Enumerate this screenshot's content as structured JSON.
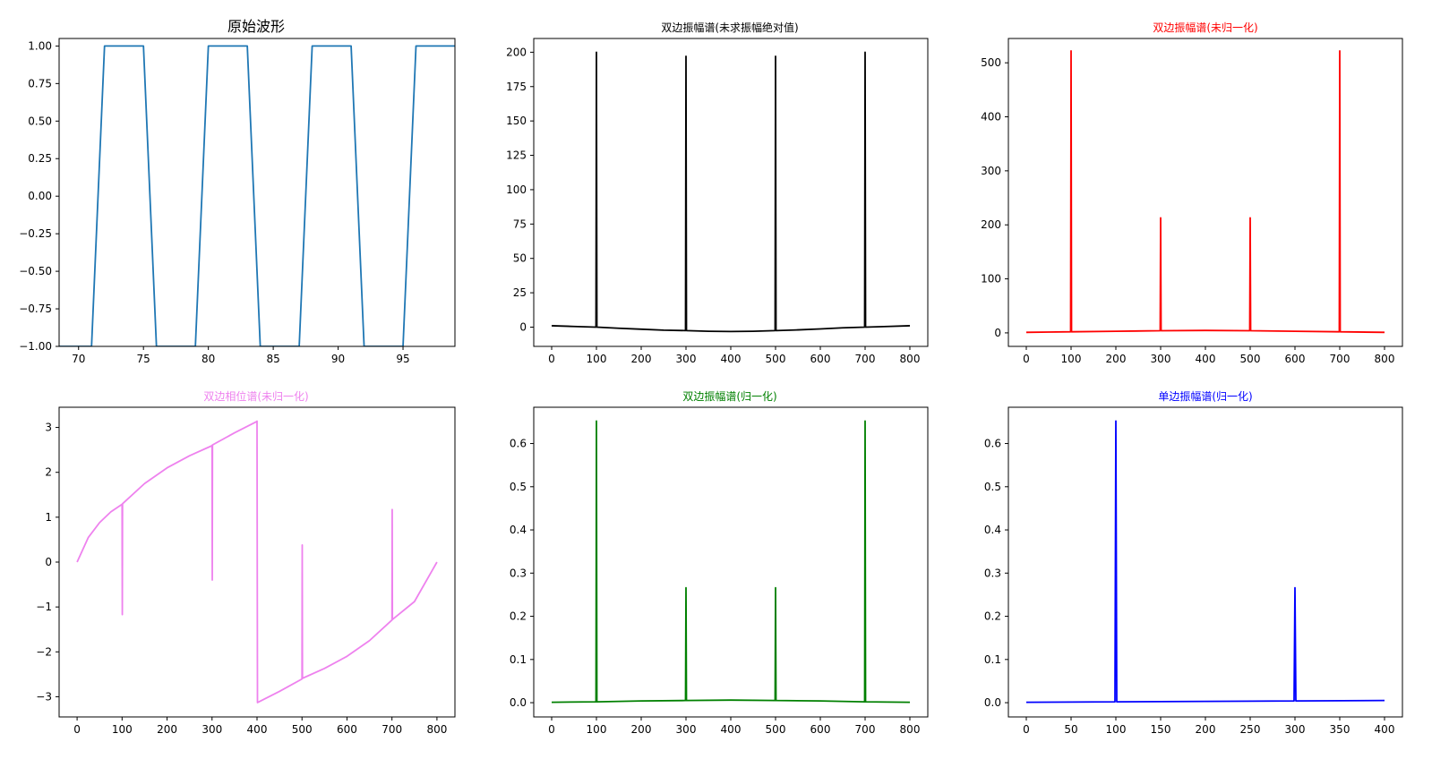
{
  "chart_data": [
    {
      "type": "line",
      "title": "原始波形",
      "title_color": "#000000",
      "title_size": "large",
      "line_color": "#1f77b4",
      "xlabel": "",
      "ylabel": "",
      "xlim": [
        68.5,
        99
      ],
      "ylim": [
        -1.0,
        1.05
      ],
      "xticks": [
        70,
        75,
        80,
        85,
        90,
        95
      ],
      "xtick_labels": [
        "70",
        "75",
        "80",
        "85",
        "90",
        "95"
      ],
      "yticks": [
        -1.0,
        -0.75,
        -0.5,
        -0.25,
        0.0,
        0.25,
        0.5,
        0.75,
        1.0
      ],
      "ytick_labels": [
        "−1.00",
        "−0.75",
        "−0.50",
        "−0.25",
        "0.00",
        "0.25",
        "0.50",
        "0.75",
        "1.00"
      ],
      "series": [
        {
          "x": [
            68.5,
            71,
            72,
            75,
            76,
            79,
            80,
            83,
            84,
            87,
            88,
            91,
            92,
            95,
            96,
            99
          ],
          "y": [
            -1,
            -1,
            1,
            1,
            -1,
            -1,
            1,
            1,
            -1,
            -1,
            1,
            1,
            -1,
            -1,
            1,
            1
          ]
        }
      ]
    },
    {
      "type": "line",
      "title": "双边振幅谱(未求振幅绝对值)",
      "title_color": "#000000",
      "title_size": "small",
      "line_color": "#000000",
      "xlabel": "",
      "ylabel": "",
      "xlim": [
        -40,
        840
      ],
      "ylim": [
        -14,
        210
      ],
      "xticks": [
        0,
        100,
        200,
        300,
        400,
        500,
        600,
        700,
        800
      ],
      "xtick_labels": [
        "0",
        "100",
        "200",
        "300",
        "400",
        "500",
        "600",
        "700",
        "800"
      ],
      "yticks": [
        0,
        25,
        50,
        75,
        100,
        125,
        150,
        175,
        200
      ],
      "ytick_labels": [
        "0",
        "25",
        "50",
        "75",
        "100",
        "125",
        "150",
        "175",
        "200"
      ],
      "series": [
        {
          "x": [
            0,
            50,
            99,
            100,
            101,
            150,
            200,
            250,
            299,
            300,
            301,
            350,
            400,
            450,
            499,
            500,
            501,
            550,
            600,
            650,
            699,
            700,
            701,
            750,
            800
          ],
          "y": [
            1,
            0.5,
            0,
            200,
            0,
            -0.8,
            -1.5,
            -2.2,
            -2.5,
            197,
            -2.5,
            -3,
            -3.2,
            -3,
            -2.5,
            197,
            -2.5,
            -2,
            -1.3,
            -0.5,
            0,
            200,
            0,
            0.5,
            1
          ]
        }
      ]
    },
    {
      "type": "line",
      "title": "双边振幅谱(未归一化)",
      "title_color": "#ff0000",
      "title_size": "small",
      "line_color": "#ff0000",
      "xlabel": "",
      "ylabel": "",
      "xlim": [
        -40,
        840
      ],
      "ylim": [
        -25,
        545
      ],
      "xticks": [
        0,
        100,
        200,
        300,
        400,
        500,
        600,
        700,
        800
      ],
      "xtick_labels": [
        "0",
        "100",
        "200",
        "300",
        "400",
        "500",
        "600",
        "700",
        "800"
      ],
      "yticks": [
        0,
        100,
        200,
        300,
        400,
        500
      ],
      "ytick_labels": [
        "0",
        "100",
        "200",
        "300",
        "400",
        "500"
      ],
      "series": [
        {
          "x": [
            0,
            50,
            99,
            100,
            101,
            200,
            299,
            300,
            301,
            400,
            499,
            500,
            501,
            600,
            699,
            700,
            701,
            800
          ],
          "y": [
            1,
            1.5,
            2,
            522,
            2,
            3,
            4,
            213,
            4,
            4.5,
            4,
            213,
            4,
            3,
            2,
            522,
            2,
            1
          ]
        }
      ]
    },
    {
      "type": "line",
      "title": "双边相位谱(未归一化)",
      "title_color": "#ee82ee",
      "title_size": "small",
      "line_color": "#ee82ee",
      "xlabel": "",
      "ylabel": "",
      "xlim": [
        -40,
        840
      ],
      "ylim": [
        -3.45,
        3.45
      ],
      "xticks": [
        0,
        100,
        200,
        300,
        400,
        500,
        600,
        700,
        800
      ],
      "xtick_labels": [
        "0",
        "100",
        "200",
        "300",
        "400",
        "500",
        "600",
        "700",
        "800"
      ],
      "yticks": [
        -3,
        -2,
        -1,
        0,
        1,
        2,
        3
      ],
      "ytick_labels": [
        "−3",
        "−2",
        "−1",
        "0",
        "1",
        "2",
        "3"
      ],
      "series": [
        {
          "x": [
            0,
            25,
            50,
            75,
            99,
            100,
            100.5,
            101,
            150,
            200,
            250,
            299,
            300,
            300.5,
            301,
            350,
            399,
            400,
            401,
            450,
            499,
            500,
            500.5,
            501,
            550,
            600,
            650,
            699,
            700,
            700.5,
            701,
            750,
            800
          ],
          "y": [
            0,
            0.55,
            0.88,
            1.12,
            1.28,
            1.29,
            -1.17,
            1.3,
            1.75,
            2.1,
            2.37,
            2.59,
            2.6,
            -0.4,
            2.61,
            2.88,
            3.13,
            3.14,
            -3.13,
            -2.88,
            -2.61,
            -2.6,
            0.38,
            -2.59,
            -2.37,
            -2.1,
            -1.75,
            -1.3,
            -1.29,
            1.17,
            -1.28,
            -0.88,
            0
          ]
        }
      ]
    },
    {
      "type": "line",
      "title": "双边振幅谱(归一化)",
      "title_color": "#008000",
      "title_size": "small",
      "line_color": "#008000",
      "xlabel": "",
      "ylabel": "",
      "xlim": [
        -40,
        840
      ],
      "ylim": [
        -0.033,
        0.684
      ],
      "xticks": [
        0,
        100,
        200,
        300,
        400,
        500,
        600,
        700,
        800
      ],
      "xtick_labels": [
        "0",
        "100",
        "200",
        "300",
        "400",
        "500",
        "600",
        "700",
        "800"
      ],
      "yticks": [
        0.0,
        0.1,
        0.2,
        0.3,
        0.4,
        0.5,
        0.6
      ],
      "ytick_labels": [
        "0.0",
        "0.1",
        "0.2",
        "0.3",
        "0.4",
        "0.5",
        "0.6"
      ],
      "series": [
        {
          "x": [
            0,
            99,
            100,
            101,
            200,
            299,
            300,
            301,
            400,
            499,
            500,
            501,
            600,
            699,
            700,
            701,
            800
          ],
          "y": [
            0.001,
            0.002,
            0.652,
            0.002,
            0.004,
            0.005,
            0.266,
            0.005,
            0.006,
            0.005,
            0.266,
            0.005,
            0.004,
            0.002,
            0.652,
            0.002,
            0.001
          ]
        }
      ]
    },
    {
      "type": "line",
      "title": "单边振幅谱(归一化)",
      "title_color": "#0000ff",
      "title_size": "small",
      "line_color": "#0000ff",
      "xlabel": "",
      "ylabel": "",
      "xlim": [
        -20,
        420
      ],
      "ylim": [
        -0.033,
        0.684
      ],
      "xticks": [
        0,
        50,
        100,
        150,
        200,
        250,
        300,
        350,
        400
      ],
      "xtick_labels": [
        "0",
        "50",
        "100",
        "150",
        "200",
        "250",
        "300",
        "350",
        "400"
      ],
      "yticks": [
        0.0,
        0.1,
        0.2,
        0.3,
        0.4,
        0.5,
        0.6
      ],
      "ytick_labels": [
        "0.0",
        "0.1",
        "0.2",
        "0.3",
        "0.4",
        "0.5",
        "0.6"
      ],
      "series": [
        {
          "x": [
            0,
            99,
            100,
            101,
            200,
            299,
            300,
            301,
            400
          ],
          "y": [
            0.001,
            0.002,
            0.652,
            0.002,
            0.003,
            0.004,
            0.266,
            0.004,
            0.005
          ]
        }
      ]
    }
  ]
}
